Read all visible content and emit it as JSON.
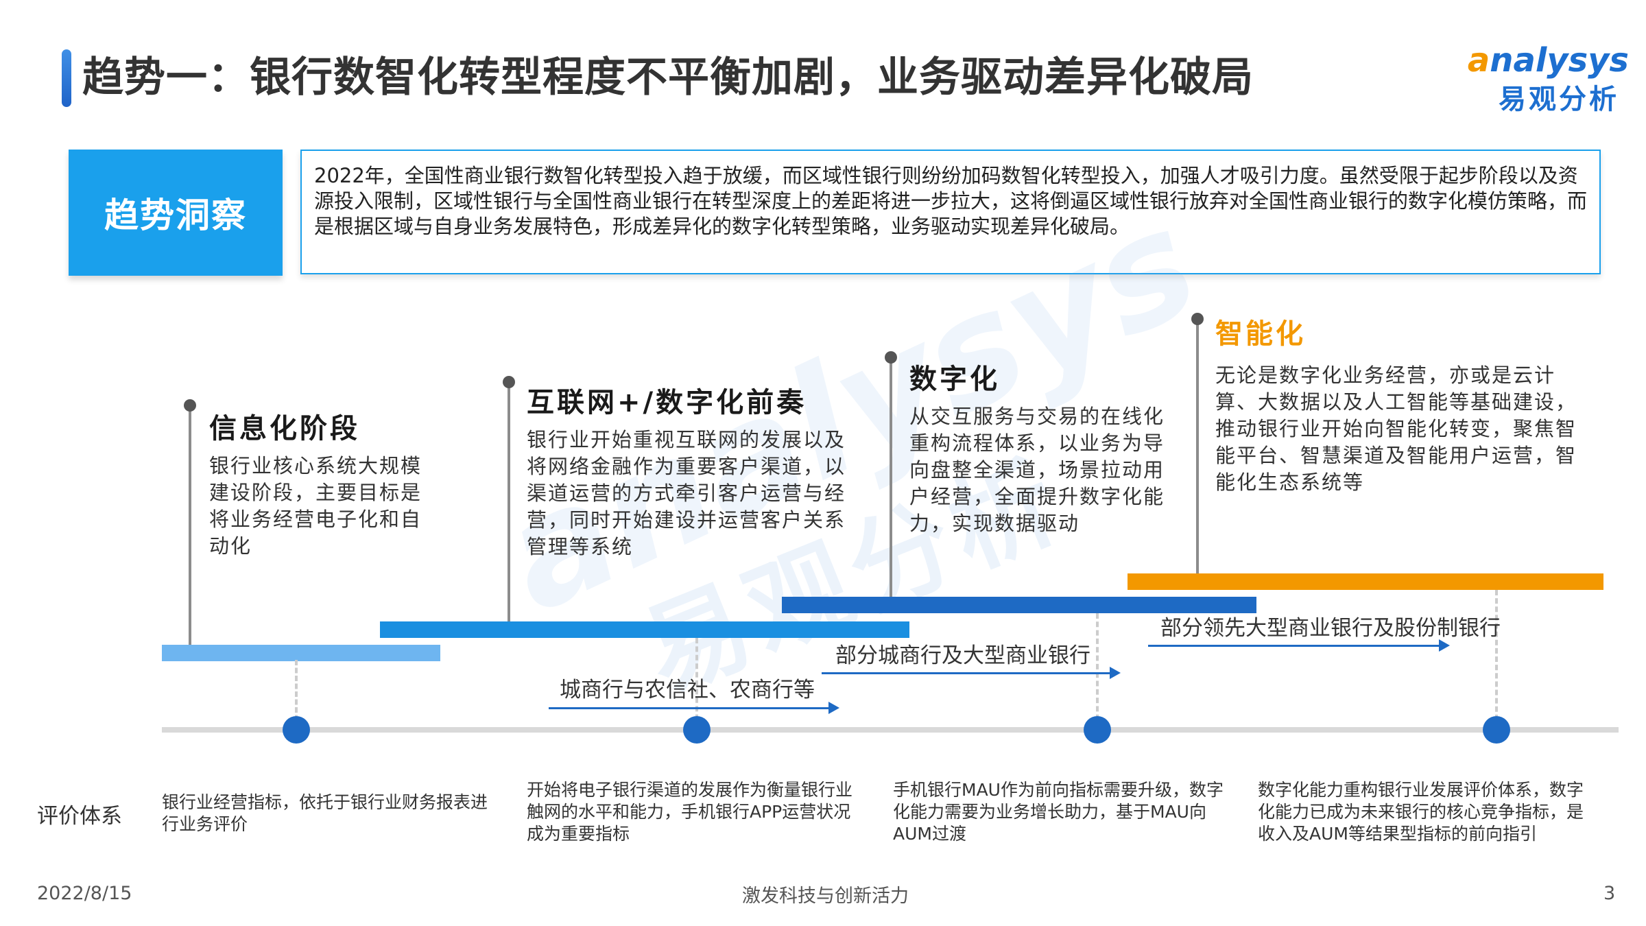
{
  "header": {
    "title": "趋势一：银行数智化转型程度不平衡加剧，业务驱动差异化破局",
    "logo_en_prefix": "a",
    "logo_en_rest": "nalysys",
    "logo_cn": "易观分析"
  },
  "insight": {
    "tag": "趋势洞察",
    "text": "2022年，全国性商业银行数智化转型投入趋于放缓，而区域性银行则纷纷加码数智化转型投入，加强人才吸引力度。虽然受限于起步阶段以及资源投入限制，区域性银行与全国性商业银行在转型深度上的差距将进一步拉大，这将倒逼区域性银行放弃对全国性商业银行的数字化模仿策略，而是根据区域与自身业务发展特色，形成差异化的数字化转型策略，业务驱动实现差异化破局。"
  },
  "watermark": {
    "en": "analysys",
    "cn": "易观分析"
  },
  "stages": [
    {
      "title": "信息化阶段",
      "desc": "银行业核心系统大规模建设阶段，主要目标是将业务经营电子化和自动化",
      "color": "#6eb5f0"
    },
    {
      "title": "互联网+/数字化前奏",
      "desc": "银行业开始重视互联网的发展以及将网络金融作为重要客户渠道，以渠道运营的方式牵引客户运营与经营，同时开始建设并运营客户关系管理等系统",
      "color": "#1a8fe0"
    },
    {
      "title": "数字化",
      "desc": "从交互服务与交易的在线化重构流程体系，以业务为导向盘整全渠道，场景拉动用户经营，全面提升数字化能力，实现数据驱动",
      "color": "#1e6ac4"
    },
    {
      "title": "智能化",
      "desc": "无论是数字化业务经营，亦或是云计算、大数据以及人工智能等基础建设，推动银行业开始向智能化转变，聚焦智能平台、智慧渠道及智能用户运营，智能化生态系统等",
      "color": "#f39800"
    }
  ],
  "banks": [
    "城商行与农信社、农商行等",
    "部分城商行及大型商业银行",
    "部分领先大型商业银行及股份制银行"
  ],
  "evaluation": {
    "label": "评价体系",
    "items": [
      "银行业经营指标，依托于银行业财务报表进行业务评价",
      "开始将电子银行渠道的发展作为衡量银行业触网的水平和能力，手机银行APP运营状况成为重要指标",
      "手机银行MAU作为前向指标需要升级，数字化能力需要为业务增长助力，基于MAU向AUM过渡",
      "数字化能力重构银行业发展评价体系，数字化能力已成为未来银行的核心竞争指标，是收入及AUM等结果型指标的前向指引"
    ]
  },
  "footer": {
    "date": "2022/8/15",
    "slogan": "激发科技与创新活力",
    "page": "3"
  },
  "colors": {
    "accent": "#1aa0ec",
    "timeline_dot": "#1e6ac4",
    "orange": "#f39800"
  }
}
